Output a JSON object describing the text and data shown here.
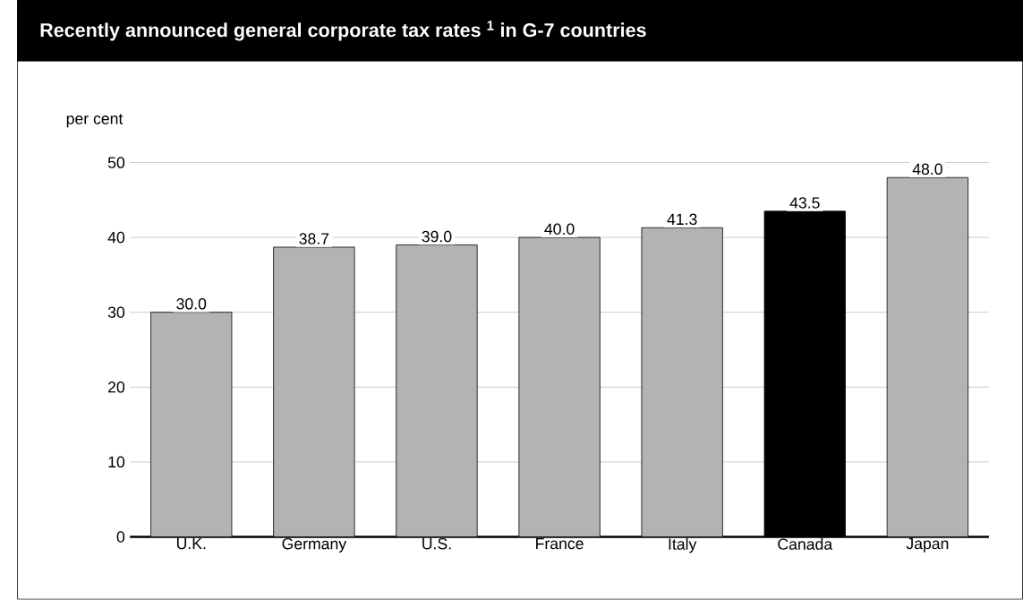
{
  "chart_data": {
    "type": "bar",
    "title": "Recently announced general corporate tax rates $^{1}$ in G-7 countries",
    "ylabel": "per cent",
    "categories": [
      "U.K.",
      "Germany",
      "U.S.",
      "France",
      "Italy",
      "Canada",
      "Japan"
    ],
    "values": [
      30.0,
      38.7,
      39.0,
      40.0,
      41.3,
      43.5,
      48.0
    ],
    "value_labels": [
      "30.0",
      "38.7",
      "39.0",
      "40.0",
      "41.3",
      "43.5",
      "48.0"
    ],
    "colors": [
      "#b3b3b3",
      "#b3b3b3",
      "#b3b3b3",
      "#b3b3b3",
      "#b3b3b3",
      "#000000",
      "#b3b3b3"
    ],
    "ylim": [
      0,
      50
    ],
    "yticks": [
      0,
      10,
      20,
      30,
      40,
      50
    ],
    "grid": "y"
  }
}
